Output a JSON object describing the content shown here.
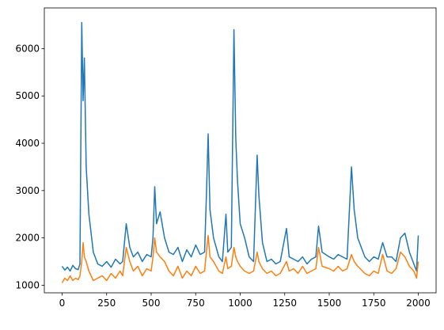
{
  "chart_data": {
    "type": "line",
    "x": [
      0,
      15,
      30,
      45,
      60,
      75,
      90,
      100,
      110,
      118,
      125,
      135,
      150,
      175,
      200,
      225,
      250,
      275,
      300,
      325,
      340,
      360,
      380,
      400,
      425,
      450,
      475,
      500,
      510,
      520,
      530,
      550,
      575,
      600,
      625,
      650,
      675,
      700,
      725,
      750,
      775,
      800,
      810,
      820,
      830,
      850,
      880,
      900,
      920,
      930,
      950,
      965,
      975,
      985,
      1000,
      1025,
      1050,
      1075,
      1095,
      1105,
      1125,
      1150,
      1175,
      1200,
      1225,
      1260,
      1275,
      1300,
      1325,
      1350,
      1375,
      1400,
      1425,
      1440,
      1460,
      1500,
      1525,
      1550,
      1575,
      1600,
      1625,
      1640,
      1660,
      1700,
      1725,
      1750,
      1775,
      1800,
      1825,
      1850,
      1875,
      1900,
      1925,
      1950,
      1975,
      1990,
      2000
    ],
    "series": [
      {
        "color": "#1f77b4",
        "values": [
          1400,
          1320,
          1380,
          1300,
          1420,
          1350,
          1330,
          1450,
          6550,
          4900,
          5800,
          3500,
          2500,
          1700,
          1450,
          1400,
          1500,
          1380,
          1550,
          1450,
          1500,
          2300,
          1800,
          1600,
          1700,
          1500,
          1650,
          1600,
          2000,
          3080,
          2300,
          2550,
          2000,
          1700,
          1650,
          1800,
          1500,
          1750,
          1600,
          1850,
          1650,
          1700,
          2900,
          4200,
          2600,
          2000,
          1600,
          1500,
          2500,
          1700,
          1800,
          6400,
          4100,
          3200,
          2300,
          2000,
          1600,
          1500,
          3750,
          2900,
          1900,
          1500,
          1550,
          1450,
          1500,
          2200,
          1600,
          1550,
          1500,
          1600,
          1450,
          1550,
          1600,
          2250,
          1700,
          1600,
          1550,
          1650,
          1600,
          1550,
          3500,
          2600,
          2000,
          1600,
          1500,
          1600,
          1550,
          1900,
          1600,
          1600,
          1500,
          2000,
          2100,
          1700,
          1450,
          1300,
          2050
        ]
      },
      {
        "color": "#ff7f0e",
        "values": [
          1050,
          1150,
          1100,
          1200,
          1100,
          1150,
          1120,
          1200,
          1500,
          1900,
          1600,
          1500,
          1300,
          1100,
          1150,
          1200,
          1100,
          1250,
          1150,
          1300,
          1200,
          1800,
          1500,
          1300,
          1400,
          1200,
          1350,
          1300,
          1600,
          2000,
          1700,
          1600,
          1500,
          1300,
          1200,
          1400,
          1150,
          1300,
          1200,
          1400,
          1250,
          1300,
          1700,
          2050,
          1600,
          1500,
          1300,
          1250,
          1600,
          1350,
          1400,
          1800,
          1600,
          1500,
          1400,
          1300,
          1250,
          1300,
          1700,
          1500,
          1350,
          1250,
          1300,
          1200,
          1250,
          1500,
          1300,
          1350,
          1250,
          1400,
          1250,
          1300,
          1350,
          1800,
          1400,
          1350,
          1300,
          1400,
          1300,
          1350,
          1650,
          1500,
          1400,
          1250,
          1200,
          1300,
          1250,
          1650,
          1300,
          1250,
          1350,
          1700,
          1600,
          1400,
          1300,
          1150,
          1500
        ]
      }
    ],
    "xlim": [
      -100,
      2100
    ],
    "ylim": [
      840,
      6860
    ],
    "xticks": [
      0,
      250,
      500,
      750,
      1000,
      1250,
      1500,
      1750,
      2000
    ],
    "yticks": [
      1000,
      2000,
      3000,
      4000,
      5000,
      6000
    ]
  }
}
